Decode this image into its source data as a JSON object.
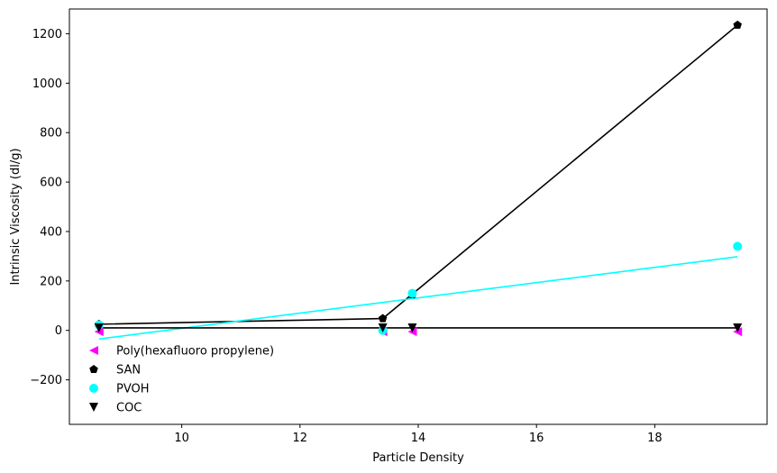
{
  "chart_data": {
    "type": "scatter",
    "title": "",
    "xlabel": "Particle Density",
    "ylabel": "Intrinsic Viscosity (dl/g)",
    "xlim": [
      8.1,
      19.9
    ],
    "ylim": [
      -380,
      1300
    ],
    "x_ticks": [
      10,
      12,
      14,
      16,
      18
    ],
    "x_tick_labels": [
      "10",
      "12",
      "14",
      "16",
      "18"
    ],
    "y_ticks": [
      -200,
      0,
      200,
      400,
      600,
      800,
      1000,
      1200
    ],
    "y_tick_labels": [
      "−200",
      "0",
      "200",
      "400",
      "600",
      "800",
      "1000",
      "1200"
    ],
    "grid": false,
    "legend_position": "lower-left",
    "series": [
      {
        "name": "Poly(hexafluoro propylene)",
        "marker": "triangle-left",
        "color": "#ff00ff",
        "x": [
          8.6,
          13.4,
          13.9,
          19.4
        ],
        "y": [
          -5,
          -5,
          -5,
          -5
        ],
        "line": null
      },
      {
        "name": "SAN",
        "marker": "pentagon",
        "color": "#000000",
        "x": [
          8.6,
          13.4,
          13.9,
          19.4
        ],
        "y": [
          25,
          48,
          145,
          1235
        ],
        "line": {
          "color": "#000000",
          "x": [
            8.6,
            13.4,
            19.4
          ],
          "y": [
            25,
            48,
            1235
          ]
        }
      },
      {
        "name": "PVOH",
        "marker": "circle",
        "color": "#00ffff",
        "x": [
          8.6,
          13.4,
          13.9,
          19.4
        ],
        "y": [
          22,
          0,
          150,
          340
        ],
        "line": {
          "color": "#00ffff",
          "x": [
            8.6,
            19.4
          ],
          "y": [
            -35,
            298
          ]
        }
      },
      {
        "name": "COC",
        "marker": "triangle-down",
        "color": "#000000",
        "x": [
          8.6,
          13.4,
          13.9,
          19.4
        ],
        "y": [
          10,
          10,
          10,
          10
        ],
        "line": {
          "color": "#000000",
          "x": [
            8.6,
            19.4
          ],
          "y": [
            10,
            10
          ]
        }
      }
    ]
  }
}
